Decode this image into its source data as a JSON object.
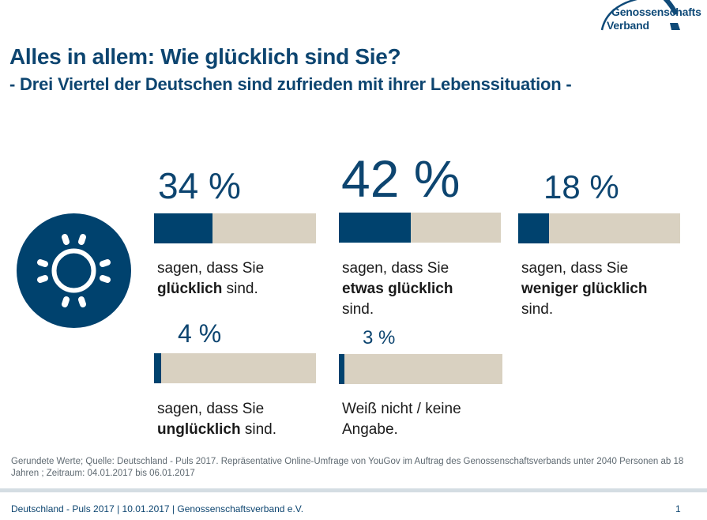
{
  "logo": {
    "line1": "Genossenschafts",
    "line2": "Verband"
  },
  "header": {
    "title": "Alles in allem: Wie glücklich sind Sie?",
    "subtitle": "- Drei Viertel der Deutschen sind zufrieden mit ihrer Lebenssituation -"
  },
  "icon": "sun-icon",
  "colors": {
    "primary": "#00426e",
    "track": "#d9d1c1",
    "text_blue": "#0d4570"
  },
  "chart_data": {
    "type": "bar",
    "title": "Alles in allem: Wie glücklich sind Sie?",
    "subtitle": "- Drei Viertel der Deutschen sind zufrieden mit ihrer Lebenssituation -",
    "unit": "%",
    "ylim": [
      0,
      100
    ],
    "categories": [
      "glücklich",
      "etwas glücklich",
      "weniger glücklich",
      "unglücklich",
      "Weiß nicht / keine Angabe"
    ],
    "values": [
      34,
      42,
      18,
      4,
      3
    ],
    "items": [
      {
        "value": 34,
        "label": "34 %",
        "prefix": "sagen, dass Sie",
        "bold": "glücklich",
        "suffix": " sind."
      },
      {
        "value": 42,
        "label": "42 %",
        "prefix": "sagen, dass Sie",
        "bold": "etwas glücklich",
        "suffix": "sind."
      },
      {
        "value": 18,
        "label": "18 %",
        "prefix": "sagen, dass Sie",
        "bold": "weniger glücklich",
        "suffix": "sind."
      },
      {
        "value": 4,
        "label": "4 %",
        "prefix": "sagen, dass Sie",
        "bold": "unglücklich",
        "suffix": " sind."
      },
      {
        "value": 3,
        "label": "3 %",
        "prefix": "Weiß nicht / keine",
        "bold": "",
        "suffix": "Angabe."
      }
    ]
  },
  "note": "Gerundete Werte; Quelle: Deutschland - Puls 2017. Repräsentative Online-Umfrage von YouGov im Auftrag des Genossenschaftsverbands unter 2040 Personen ab 18 Jahren ; Zeitraum: 04.01.2017 bis 06.01.2017",
  "footer": {
    "text": "Deutschland - Puls 2017 | 10.01.2017 | Genossenschaftsverband e.V.",
    "page": "1"
  }
}
